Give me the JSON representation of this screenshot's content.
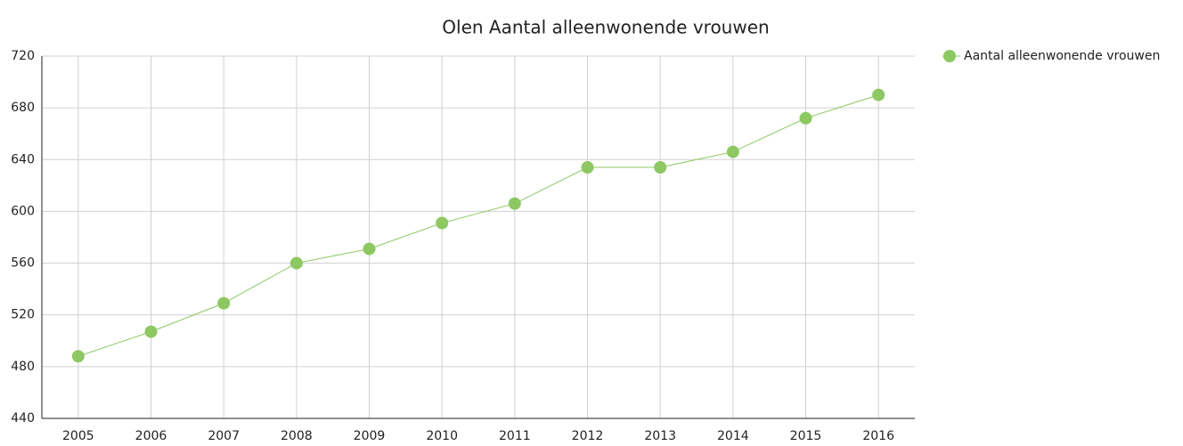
{
  "chart_data": {
    "type": "line",
    "title": "Olen  Aantal alleenwonende vrouwen",
    "categories": [
      "2005",
      "2006",
      "2007",
      "2008",
      "2009",
      "2010",
      "2011",
      "2012",
      "2013",
      "2014",
      "2015",
      "2016"
    ],
    "series": [
      {
        "name": "Aantal alleenwonende vrouwen",
        "color": "#8dc862",
        "values": [
          488,
          507,
          529,
          560,
          571,
          591,
          606,
          634,
          634,
          646,
          672,
          690
        ]
      }
    ],
    "ylim": [
      440,
      720
    ],
    "yticks": [
      440,
      480,
      520,
      560,
      600,
      640,
      680,
      720
    ],
    "grid": true,
    "legend": "right"
  }
}
